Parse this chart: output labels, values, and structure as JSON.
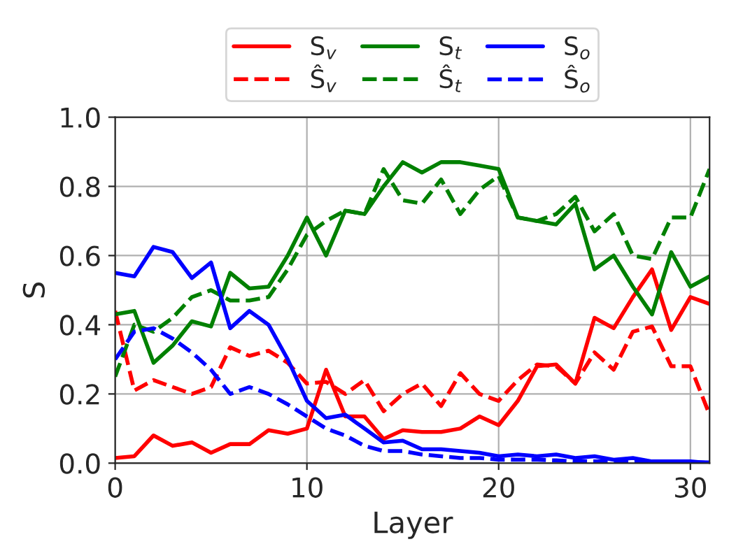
{
  "chart_data": {
    "type": "line",
    "xlabel": "Layer",
    "ylabel": "S",
    "x": [
      0,
      1,
      2,
      3,
      4,
      5,
      6,
      7,
      8,
      9,
      10,
      11,
      12,
      13,
      14,
      15,
      16,
      17,
      18,
      19,
      20,
      21,
      22,
      23,
      24,
      25,
      26,
      27,
      28,
      29,
      30,
      31
    ],
    "series": [
      {
        "name": "S$_{v}$",
        "color": "#ff0000",
        "line_style": "solid",
        "values": [
          0.015,
          0.02,
          0.08,
          0.05,
          0.06,
          0.03,
          0.055,
          0.055,
          0.095,
          0.085,
          0.1,
          0.27,
          0.135,
          0.135,
          0.07,
          0.095,
          0.09,
          0.09,
          0.1,
          0.135,
          0.11,
          0.18,
          0.28,
          0.285,
          0.23,
          0.42,
          0.39,
          0.48,
          0.56,
          0.385,
          0.48,
          0.46
        ]
      },
      {
        "name": "Ŝ$_{v}$",
        "color": "#ff0000",
        "line_style": "dashed",
        "values": [
          0.44,
          0.21,
          0.24,
          0.22,
          0.2,
          0.22,
          0.335,
          0.31,
          0.325,
          0.29,
          0.23,
          0.235,
          0.2,
          0.24,
          0.15,
          0.2,
          0.23,
          0.165,
          0.26,
          0.2,
          0.18,
          0.24,
          0.285,
          0.28,
          0.23,
          0.32,
          0.27,
          0.38,
          0.395,
          0.28,
          0.28,
          0.14
        ]
      },
      {
        "name": "S$_{t}$",
        "color": "#008000",
        "line_style": "solid",
        "values": [
          0.43,
          0.44,
          0.29,
          0.34,
          0.41,
          0.395,
          0.55,
          0.505,
          0.51,
          0.6,
          0.71,
          0.6,
          0.73,
          0.72,
          0.8,
          0.87,
          0.84,
          0.87,
          0.87,
          0.86,
          0.85,
          0.71,
          0.7,
          0.69,
          0.75,
          0.56,
          0.6,
          0.51,
          0.43,
          0.61,
          0.51,
          0.54
        ]
      },
      {
        "name": "Ŝ$_{t}$",
        "color": "#008000",
        "line_style": "dashed",
        "values": [
          0.25,
          0.4,
          0.38,
          0.42,
          0.48,
          0.5,
          0.47,
          0.47,
          0.48,
          0.56,
          0.66,
          0.7,
          0.73,
          0.72,
          0.85,
          0.76,
          0.75,
          0.82,
          0.72,
          0.79,
          0.83,
          0.71,
          0.7,
          0.72,
          0.77,
          0.67,
          0.72,
          0.6,
          0.59,
          0.71,
          0.71,
          0.85
        ]
      },
      {
        "name": "S$_{o}$",
        "color": "#0000ff",
        "line_style": "solid",
        "values": [
          0.55,
          0.54,
          0.625,
          0.61,
          0.535,
          0.58,
          0.39,
          0.44,
          0.4,
          0.3,
          0.18,
          0.13,
          0.14,
          0.1,
          0.06,
          0.065,
          0.04,
          0.04,
          0.035,
          0.03,
          0.02,
          0.025,
          0.02,
          0.025,
          0.015,
          0.02,
          0.01,
          0.015,
          0.005,
          0.005,
          0.005,
          0.0
        ]
      },
      {
        "name": "Ŝ$_{o}$",
        "color": "#0000ff",
        "line_style": "dashed",
        "values": [
          0.3,
          0.38,
          0.39,
          0.36,
          0.32,
          0.27,
          0.2,
          0.22,
          0.2,
          0.17,
          0.135,
          0.1,
          0.08,
          0.05,
          0.035,
          0.035,
          0.025,
          0.02,
          0.015,
          0.015,
          0.01,
          0.01,
          0.01,
          0.008,
          0.005,
          0.005,
          0.005,
          0.005,
          0.005,
          0.003,
          0.003,
          0.002
        ]
      }
    ],
    "xlim": [
      0,
      31
    ],
    "ylim": [
      0,
      1
    ],
    "xticks": [
      0,
      10,
      20,
      30
    ],
    "yticks": [
      {
        "value": 0,
        "label": "0.0"
      },
      {
        "value": 0.2,
        "label": "0.2"
      },
      {
        "value": 0.4,
        "label": "0.4"
      },
      {
        "value": 0.6,
        "label": "0.6"
      },
      {
        "value": 0.8,
        "label": "0.8"
      },
      {
        "value": 1,
        "label": "1.0"
      }
    ],
    "grid": true,
    "legend": "top",
    "marker": "none"
  }
}
